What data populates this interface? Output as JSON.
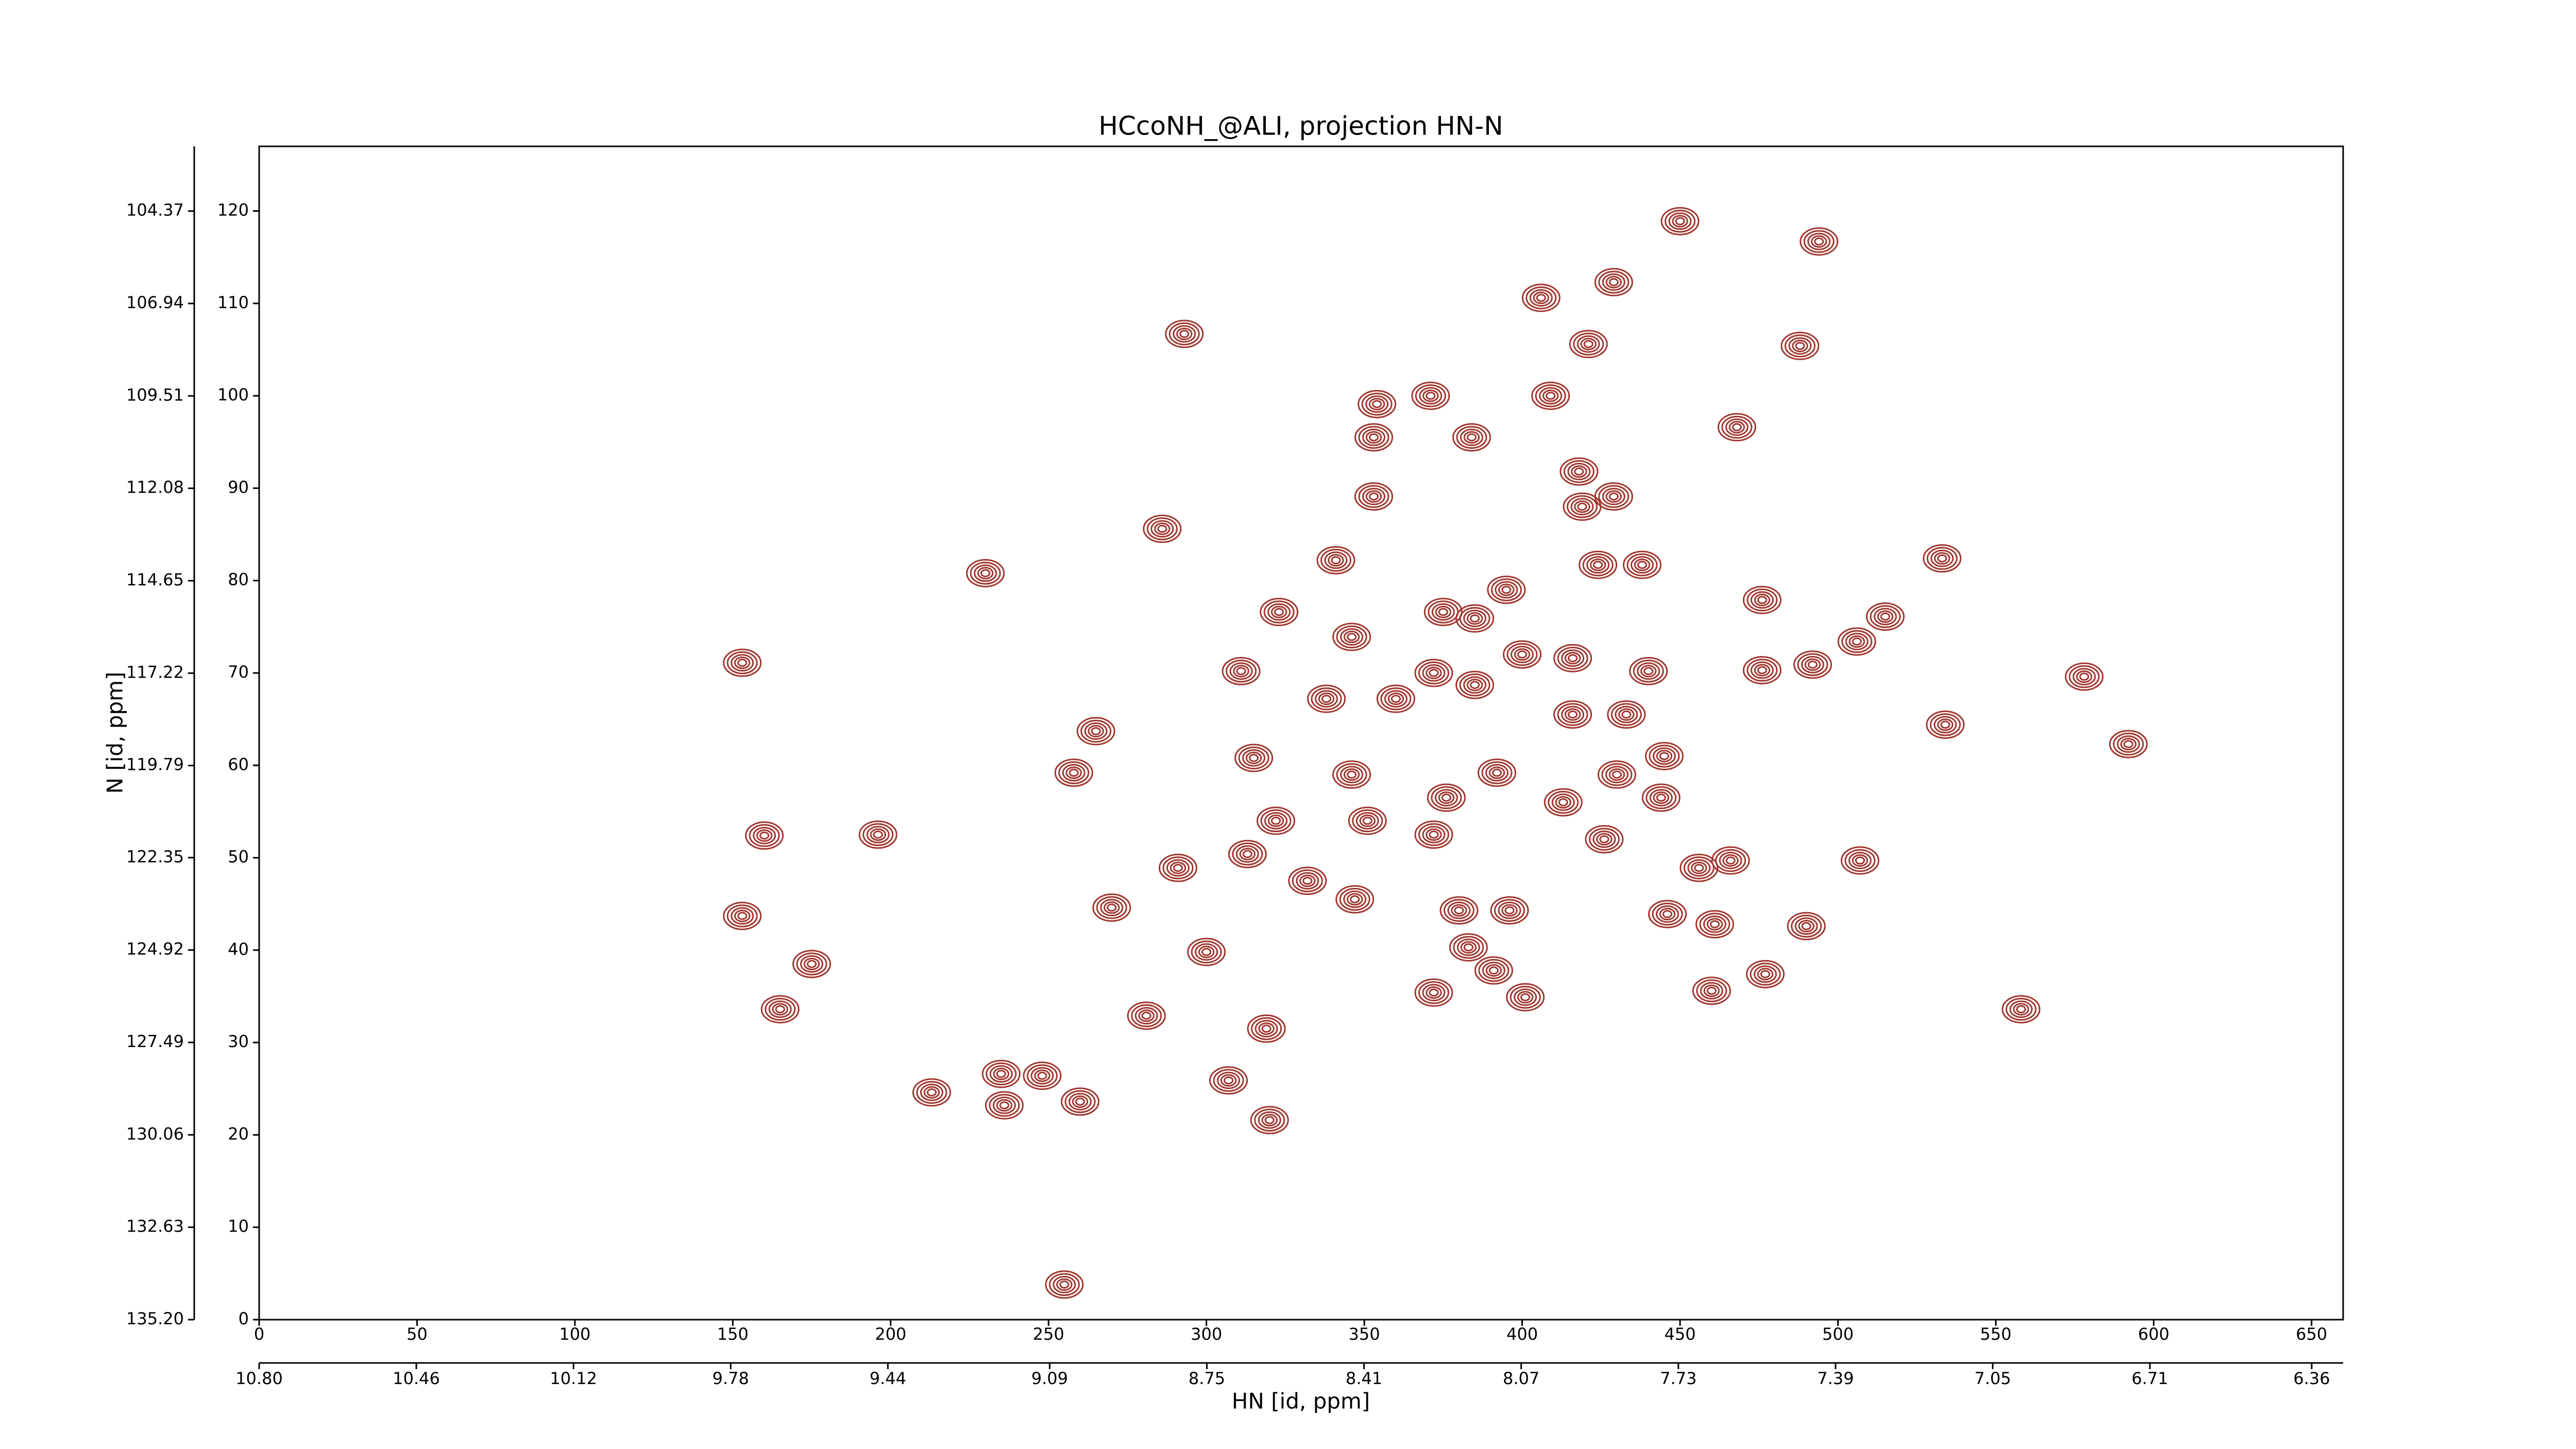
{
  "chart_data": {
    "type": "contour",
    "title": "HCcoNH_@ALI, projection HN-N",
    "xlabel": "HN [id, ppm]",
    "ylabel": "N [id, ppm]",
    "color": "#a0362e",
    "xlim": [
      0,
      660
    ],
    "ylim": [
      0,
      127
    ],
    "xticks": [
      0,
      50,
      100,
      150,
      200,
      250,
      300,
      350,
      400,
      450,
      500,
      550,
      600,
      650
    ],
    "yticks": [
      0,
      10,
      20,
      30,
      40,
      50,
      60,
      70,
      80,
      90,
      100,
      110,
      120
    ],
    "ppm_xlim": [
      10.8,
      6.292
    ],
    "ppm_xticks": [
      {
        "value": 10.8,
        "label": "10.80"
      },
      10.46,
      10.12,
      9.78,
      9.44,
      9.09,
      8.75,
      8.41,
      8.07,
      7.73,
      7.39,
      7.05,
      6.71,
      6.36
    ],
    "ppm_ylim": [
      135.2,
      102.57
    ],
    "ppm_yticks": [
      {
        "value": 135.2,
        "label": "135.20"
      },
      132.63,
      130.06,
      127.49,
      124.92,
      122.35,
      119.79,
      117.22,
      114.65,
      112.08,
      109.51,
      106.94,
      104.37
    ],
    "x": [
      450,
      494,
      429,
      406,
      421,
      488,
      293,
      409,
      354,
      371,
      384,
      353,
      468,
      418,
      353,
      419,
      429,
      286,
      341,
      230,
      424,
      438,
      533,
      476,
      323,
      375,
      385,
      395,
      515,
      346,
      416,
      400,
      311,
      440,
      476,
      492,
      506,
      578,
      153,
      338,
      360,
      372,
      385,
      433,
      534,
      416,
      592,
      265,
      315,
      258,
      346,
      445,
      376,
      392,
      413,
      430,
      444,
      351,
      322,
      196,
      160,
      372,
      426,
      507,
      466,
      456,
      313,
      291,
      332,
      347,
      396,
      270,
      461,
      490,
      446,
      153,
      380,
      300,
      383,
      175,
      391,
      477,
      372,
      401,
      460,
      165,
      281,
      319,
      558,
      307,
      235,
      248,
      260,
      213,
      236,
      320,
      255
    ],
    "values": [
      118.9,
      116.7,
      112.3,
      110.6,
      105.6,
      105.4,
      106.7,
      100,
      99.1,
      100,
      95.5,
      95.5,
      96.6,
      91.8,
      89.1,
      88,
      89.1,
      85.6,
      82.2,
      80.8,
      81.7,
      81.7,
      82.4,
      77.9,
      76.6,
      76.6,
      75.9,
      79,
      76.1,
      73.9,
      71.6,
      72,
      70.2,
      70.2,
      70.3,
      70.9,
      73.4,
      69.6,
      71.1,
      67.2,
      67.2,
      70,
      68.7,
      65.5,
      64.4,
      65.5,
      62.3,
      63.7,
      60.8,
      59.2,
      59,
      61,
      56.5,
      59.2,
      56,
      59,
      56.5,
      54,
      54,
      52.5,
      52.4,
      52.5,
      52,
      49.7,
      49.7,
      48.9,
      50.4,
      48.9,
      47.5,
      45.5,
      44.3,
      44.6,
      42.8,
      42.6,
      43.9,
      43.7,
      44.3,
      39.8,
      40.3,
      38.5,
      37.8,
      37.4,
      35.4,
      34.9,
      35.6,
      33.6,
      32.9,
      31.5,
      33.6,
      25.9,
      26.6,
      26.4,
      23.6,
      24.6,
      23.2,
      21.6,
      3.8
    ]
  }
}
